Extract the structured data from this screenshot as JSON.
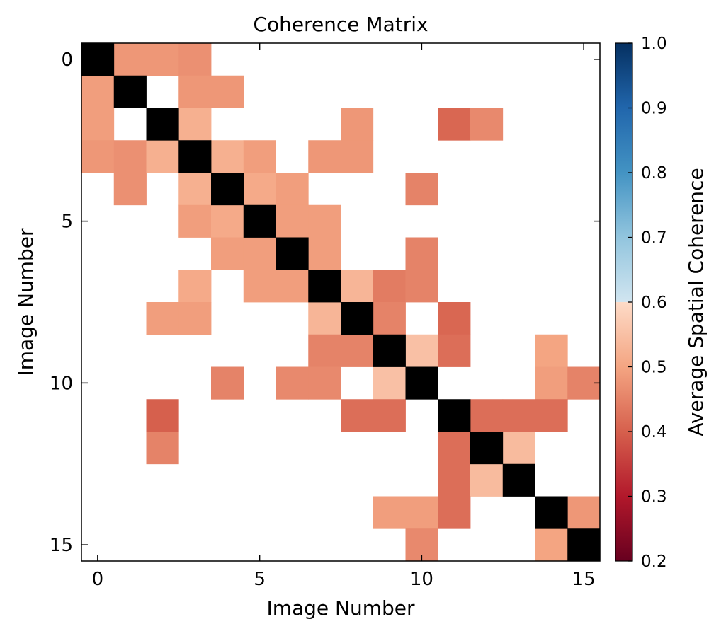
{
  "chart_data": {
    "type": "heatmap",
    "title": "Coherence Matrix",
    "xlabel": "Image Number",
    "ylabel": "Image Number",
    "x_ticks": [
      0,
      5,
      10,
      15
    ],
    "y_ticks": [
      0,
      5,
      10,
      15
    ],
    "xlim": [
      -0.5,
      15.5
    ],
    "ylim": [
      15.5,
      -0.5
    ],
    "colorbar": {
      "label": "Average Spatial Coherence",
      "range": [
        0.2,
        1.0
      ],
      "ticks": [
        0.2,
        0.3,
        0.4,
        0.5,
        0.6,
        0.7,
        0.8,
        0.9,
        1.0
      ],
      "colormap": "RdBu"
    },
    "diagonal_color": "#000000",
    "missing_color": "#ffffff",
    "cells": [
      {
        "row": 0,
        "col": 1,
        "value": 0.48
      },
      {
        "row": 0,
        "col": 2,
        "value": 0.48
      },
      {
        "row": 0,
        "col": 3,
        "value": 0.47
      },
      {
        "row": 1,
        "col": 0,
        "value": 0.49
      },
      {
        "row": 1,
        "col": 3,
        "value": 0.48
      },
      {
        "row": 1,
        "col": 4,
        "value": 0.48
      },
      {
        "row": 2,
        "col": 0,
        "value": 0.49
      },
      {
        "row": 2,
        "col": 3,
        "value": 0.52
      },
      {
        "row": 2,
        "col": 8,
        "value": 0.48
      },
      {
        "row": 2,
        "col": 11,
        "value": 0.41
      },
      {
        "row": 2,
        "col": 12,
        "value": 0.46
      },
      {
        "row": 3,
        "col": 0,
        "value": 0.48
      },
      {
        "row": 3,
        "col": 1,
        "value": 0.47
      },
      {
        "row": 3,
        "col": 2,
        "value": 0.52
      },
      {
        "row": 3,
        "col": 4,
        "value": 0.52
      },
      {
        "row": 3,
        "col": 5,
        "value": 0.49
      },
      {
        "row": 3,
        "col": 7,
        "value": 0.48
      },
      {
        "row": 3,
        "col": 8,
        "value": 0.48
      },
      {
        "row": 4,
        "col": 1,
        "value": 0.47
      },
      {
        "row": 4,
        "col": 3,
        "value": 0.52
      },
      {
        "row": 4,
        "col": 5,
        "value": 0.51
      },
      {
        "row": 4,
        "col": 6,
        "value": 0.49
      },
      {
        "row": 4,
        "col": 10,
        "value": 0.45
      },
      {
        "row": 5,
        "col": 3,
        "value": 0.49
      },
      {
        "row": 5,
        "col": 4,
        "value": 0.51
      },
      {
        "row": 5,
        "col": 6,
        "value": 0.49
      },
      {
        "row": 5,
        "col": 7,
        "value": 0.49
      },
      {
        "row": 6,
        "col": 4,
        "value": 0.49
      },
      {
        "row": 6,
        "col": 5,
        "value": 0.49
      },
      {
        "row": 6,
        "col": 7,
        "value": 0.49
      },
      {
        "row": 6,
        "col": 10,
        "value": 0.45
      },
      {
        "row": 7,
        "col": 3,
        "value": 0.51
      },
      {
        "row": 7,
        "col": 5,
        "value": 0.49
      },
      {
        "row": 7,
        "col": 6,
        "value": 0.49
      },
      {
        "row": 7,
        "col": 8,
        "value": 0.53
      },
      {
        "row": 7,
        "col": 9,
        "value": 0.44
      },
      {
        "row": 7,
        "col": 10,
        "value": 0.45
      },
      {
        "row": 8,
        "col": 2,
        "value": 0.49
      },
      {
        "row": 8,
        "col": 3,
        "value": 0.49
      },
      {
        "row": 8,
        "col": 7,
        "value": 0.53
      },
      {
        "row": 8,
        "col": 9,
        "value": 0.45
      },
      {
        "row": 8,
        "col": 11,
        "value": 0.41
      },
      {
        "row": 9,
        "col": 7,
        "value": 0.45
      },
      {
        "row": 9,
        "col": 8,
        "value": 0.45
      },
      {
        "row": 9,
        "col": 10,
        "value": 0.55
      },
      {
        "row": 9,
        "col": 11,
        "value": 0.42
      },
      {
        "row": 9,
        "col": 14,
        "value": 0.5
      },
      {
        "row": 10,
        "col": 4,
        "value": 0.45
      },
      {
        "row": 10,
        "col": 6,
        "value": 0.46
      },
      {
        "row": 10,
        "col": 7,
        "value": 0.46
      },
      {
        "row": 10,
        "col": 9,
        "value": 0.55
      },
      {
        "row": 10,
        "col": 14,
        "value": 0.49
      },
      {
        "row": 10,
        "col": 15,
        "value": 0.45
      },
      {
        "row": 11,
        "col": 2,
        "value": 0.4
      },
      {
        "row": 11,
        "col": 8,
        "value": 0.42
      },
      {
        "row": 11,
        "col": 9,
        "value": 0.42
      },
      {
        "row": 11,
        "col": 12,
        "value": 0.42
      },
      {
        "row": 11,
        "col": 13,
        "value": 0.42
      },
      {
        "row": 11,
        "col": 14,
        "value": 0.42
      },
      {
        "row": 12,
        "col": 2,
        "value": 0.45
      },
      {
        "row": 12,
        "col": 11,
        "value": 0.42
      },
      {
        "row": 12,
        "col": 13,
        "value": 0.54
      },
      {
        "row": 13,
        "col": 11,
        "value": 0.42
      },
      {
        "row": 13,
        "col": 12,
        "value": 0.54
      },
      {
        "row": 14,
        "col": 9,
        "value": 0.49
      },
      {
        "row": 14,
        "col": 10,
        "value": 0.49
      },
      {
        "row": 14,
        "col": 11,
        "value": 0.42
      },
      {
        "row": 14,
        "col": 15,
        "value": 0.48
      },
      {
        "row": 15,
        "col": 10,
        "value": 0.46
      },
      {
        "row": 15,
        "col": 14,
        "value": 0.5
      }
    ]
  }
}
